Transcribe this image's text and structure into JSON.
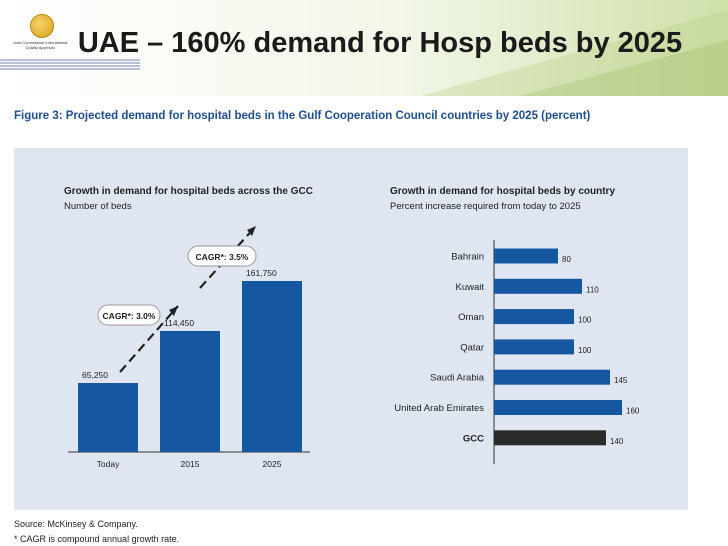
{
  "slide": {
    "title": "UAE – 160% demand for Hosp beds by 2025",
    "logo_text": "Joint Commission International Quality Approval"
  },
  "figure": {
    "title": "Figure 3: Projected demand for hospital beds in the Gulf Cooperation Council countries by 2025 (percent)",
    "source": "Source: McKinsey & Company.",
    "note": "* CAGR is compound annual growth rate."
  },
  "chart_data": [
    {
      "type": "bar",
      "title": "Growth in demand for hospital beds across the GCC",
      "subtitle": "Number of beds",
      "categories": [
        "Today",
        "2015",
        "2025"
      ],
      "values": [
        65250,
        114450,
        161750
      ],
      "value_labels": [
        "65,250",
        "114,450",
        "161,750"
      ],
      "annotations": [
        "CAGR*: 3.0%",
        "CAGR*: 3.5%"
      ],
      "ylim": [
        0,
        175000
      ],
      "color": "#1557a0"
    },
    {
      "type": "bar",
      "orientation": "horizontal",
      "title": "Growth in demand for hospital beds by country",
      "subtitle": "Percent increase required from today to 2025",
      "categories": [
        "Bahrain",
        "Kuwait",
        "Oman",
        "Qatar",
        "Saudi Arabia",
        "United Arab Emirates",
        "GCC"
      ],
      "values": [
        80,
        110,
        100,
        100,
        145,
        160,
        140
      ],
      "xlim": [
        0,
        200
      ],
      "colors": [
        "#1557a0",
        "#1557a0",
        "#1557a0",
        "#1557a0",
        "#1557a0",
        "#1557a0",
        "#2b2b2b"
      ]
    }
  ]
}
